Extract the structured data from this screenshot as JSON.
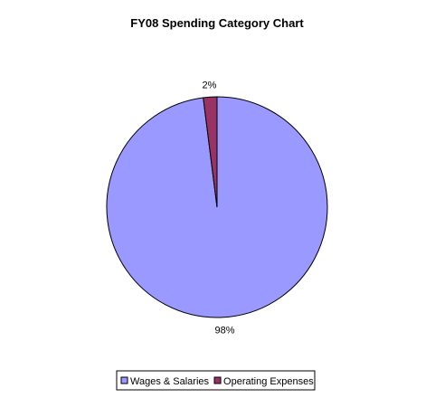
{
  "chart_data": {
    "type": "pie",
    "title": "FY08 Spending Category Chart",
    "slices": [
      {
        "label": "Wages & Salaries",
        "value": 98,
        "display": "98%",
        "color": "#9999ff"
      },
      {
        "label": "Operating Expenses",
        "value": 2,
        "display": "2%",
        "color": "#993366"
      }
    ],
    "legend_position": "bottom"
  }
}
